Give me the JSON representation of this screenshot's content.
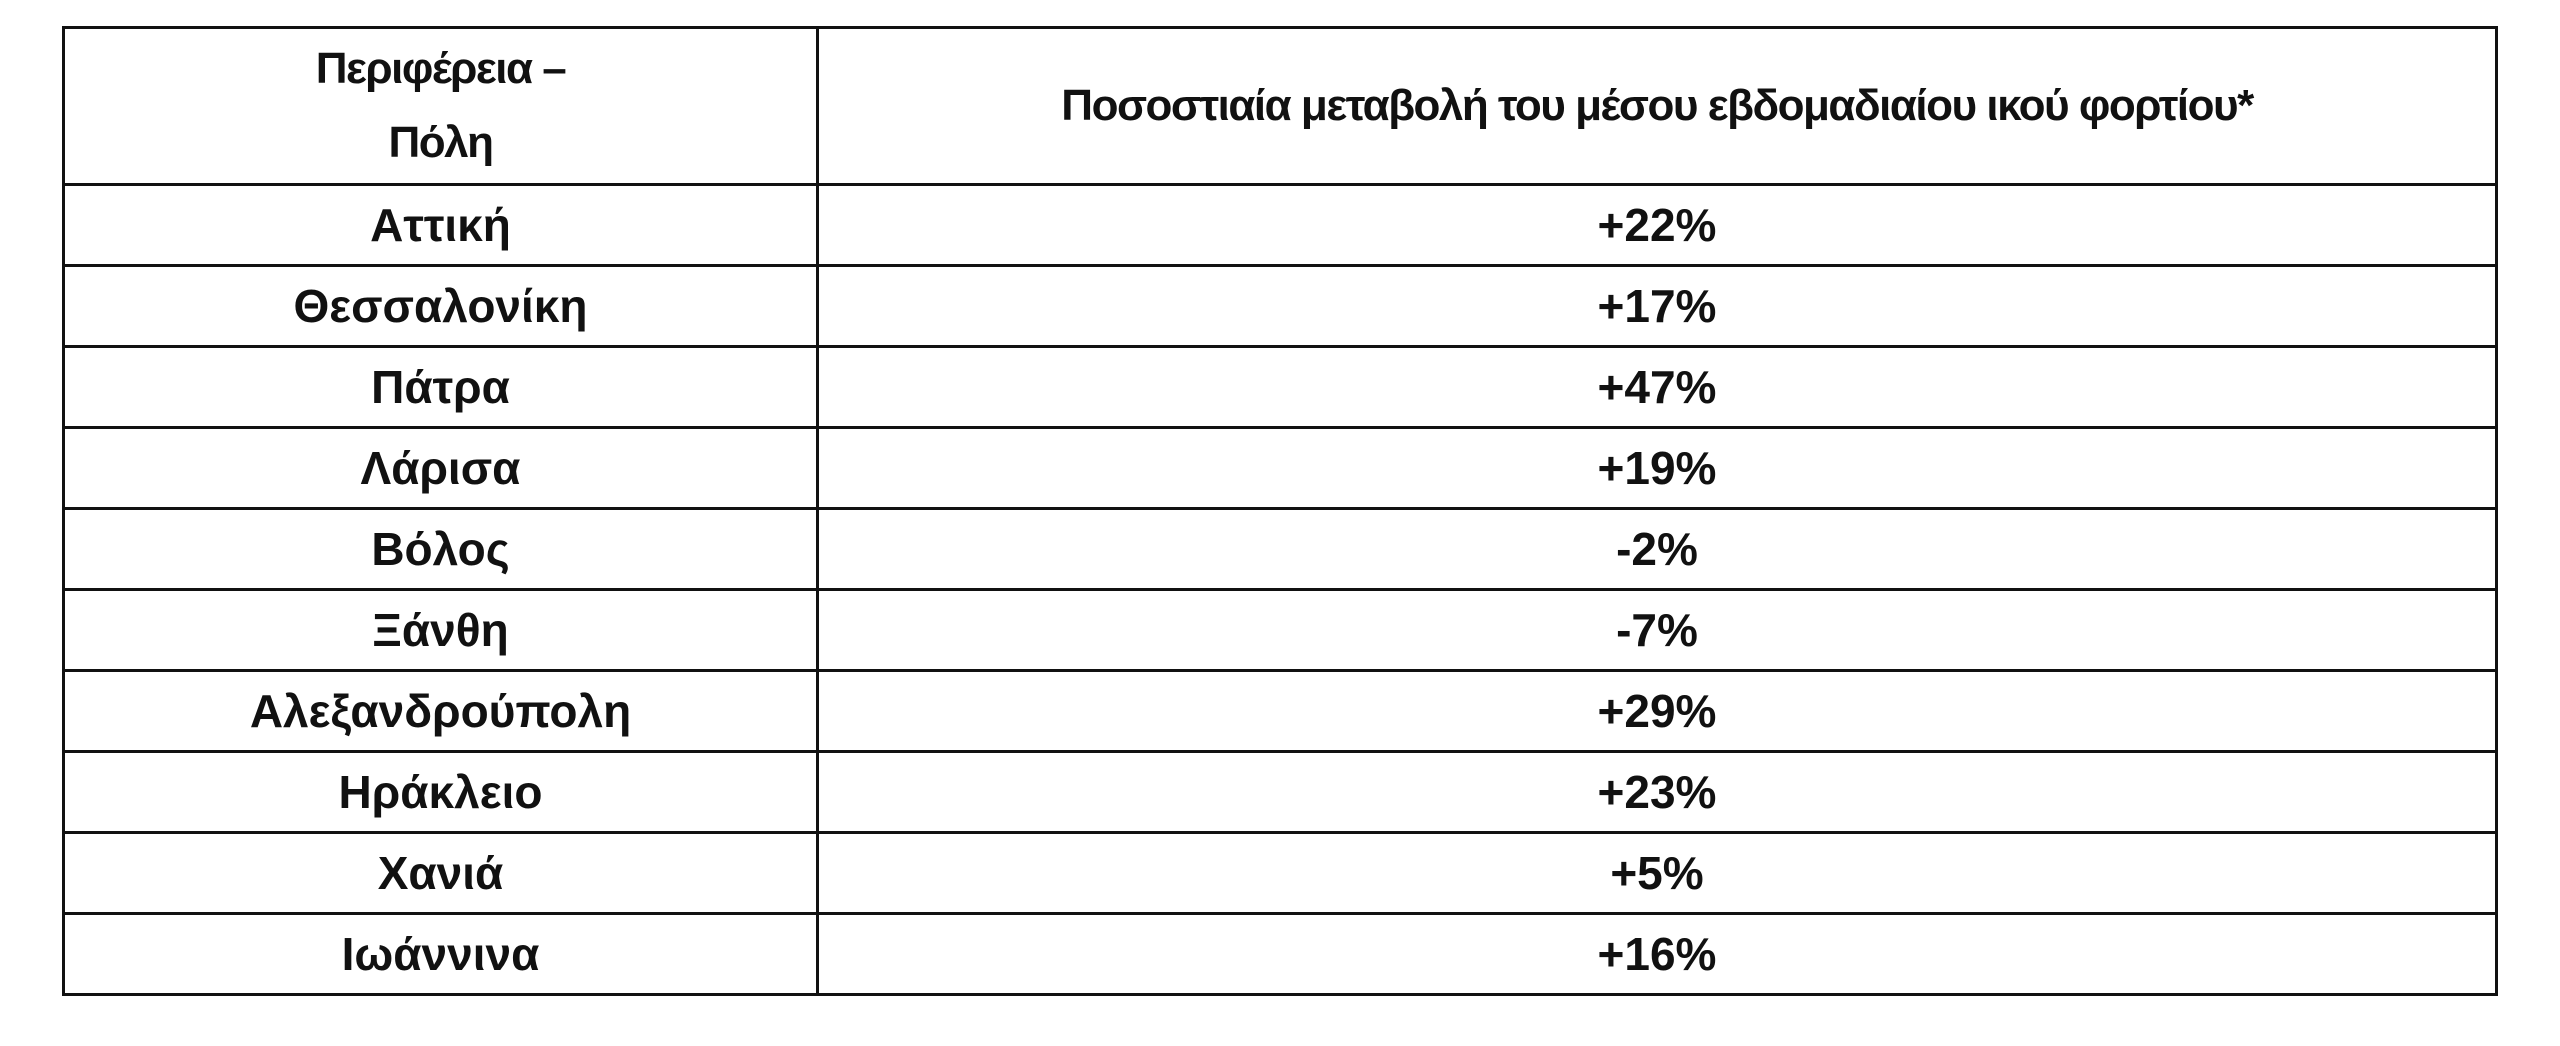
{
  "table": {
    "header": [
      "Περιφέρεια – Πόλη",
      "Ποσοστιαία μεταβολή του μέσου εβδομαδιαίου ικού φορτίου*"
    ],
    "rows": [
      [
        "Αττική",
        "+22%"
      ],
      [
        "Θεσσαλονίκη",
        "+17%"
      ],
      [
        "Πάτρα",
        "+47%"
      ],
      [
        "Λάρισα",
        "+19%"
      ],
      [
        "Βόλος",
        "-2%"
      ],
      [
        "Ξάνθη",
        "-7%"
      ],
      [
        "Αλεξανδρούπολη",
        "+29%"
      ],
      [
        "Ηράκλειο",
        "+23%"
      ],
      [
        "Χανιά",
        "+5%"
      ],
      [
        "Ιωάννινα",
        "+16%"
      ]
    ]
  }
}
